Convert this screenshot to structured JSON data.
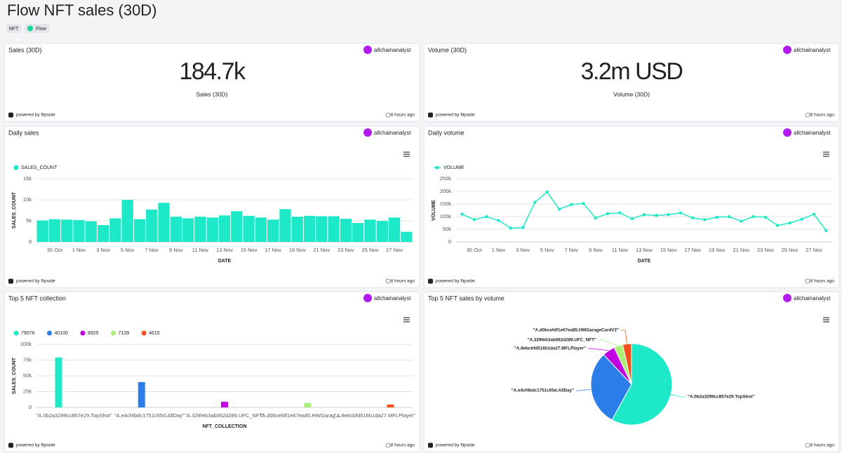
{
  "title": "Flow NFT sales (30D)",
  "tags": [
    "NFT",
    "Flow"
  ],
  "author": "allchainanalyst",
  "powered_by": "powered by flipside",
  "updated": "8 hours ago",
  "kpis": [
    {
      "title": "Sales (30D)",
      "value": "184.7k",
      "label": "Sales (30D)"
    },
    {
      "title": "Volume (30D)",
      "value": "3.2m USD",
      "label": "Volume (30D)"
    }
  ],
  "chart_data": [
    {
      "type": "bar",
      "title": "Daily sales",
      "categories": [
        null,
        "30 Oct",
        null,
        "1 Nov",
        null,
        "3 Nov",
        null,
        "5 Nov",
        null,
        "7 Nov",
        null,
        "9 Nov",
        null,
        "11 Nov",
        null,
        "13 Nov",
        null,
        "15 Nov",
        null,
        "17 Nov",
        null,
        "19 Nov",
        null,
        "21 Nov",
        null,
        "23 Nov",
        null,
        "25 Nov",
        null,
        "27 Nov",
        null
      ],
      "series": [
        {
          "name": "SALES_COUNT",
          "color": "#1de9c9",
          "values": [
            5100,
            5400,
            5300,
            5200,
            4900,
            4000,
            5600,
            10000,
            5400,
            7700,
            9300,
            6000,
            5600,
            6000,
            5800,
            6300,
            7300,
            6200,
            5800,
            5300,
            7800,
            6000,
            6200,
            6100,
            6100,
            5500,
            4500,
            5300,
            5000,
            5800,
            2400
          ]
        }
      ],
      "x_label": "DATE",
      "y_label": "SALES_COUNT",
      "ylim": [
        0,
        15000
      ],
      "yticks": [
        0,
        {
          "value": 5000,
          "label": "5k"
        },
        {
          "value": 10000,
          "label": "10k"
        },
        {
          "value": 15000,
          "label": "15k"
        }
      ],
      "grid": true
    },
    {
      "type": "line",
      "title": "Daily volume",
      "categories": [
        null,
        "30 Oct",
        null,
        "1 Nov",
        null,
        "3 Nov",
        null,
        "5 Nov",
        null,
        "7 Nov",
        null,
        "9 Nov",
        null,
        "11 Nov",
        null,
        "13 Nov",
        null,
        "15 Nov",
        null,
        "17 Nov",
        null,
        "19 Nov",
        null,
        "21 Nov",
        null,
        "23 Nov",
        null,
        "25 Nov",
        null,
        "27 Nov",
        null
      ],
      "series": [
        {
          "name": "VOLUME",
          "color": "#1de9c9",
          "values": [
            110000,
            88000,
            100000,
            85000,
            55000,
            57000,
            157000,
            198000,
            130000,
            148000,
            152000,
            95000,
            112000,
            115000,
            92000,
            108000,
            105000,
            108000,
            115000,
            95000,
            88000,
            98000,
            100000,
            82000,
            100000,
            98000,
            65000,
            75000,
            90000,
            110000,
            45000
          ]
        }
      ],
      "x_label": "DATE",
      "y_label": "VOLUME",
      "ylim": [
        0,
        250000
      ],
      "yticks": [
        0,
        {
          "value": 50000,
          "label": "50k"
        },
        {
          "value": 100000,
          "label": "100k"
        },
        {
          "value": 150000,
          "label": "150k"
        },
        {
          "value": 200000,
          "label": "200k"
        },
        {
          "value": 250000,
          "label": "250k"
        }
      ],
      "grid": true
    },
    {
      "type": "bar",
      "title": "Top 5 NFT collection",
      "categories": [
        "\"A.0b2a3299cc857e29.TopShot\"",
        "\"A.e4cf4bdc1751c65d.AllDay\"",
        "\"A.329feb3ab062d289.UFC_NFT\"",
        "\"A.d0bcefdf1e67ea85.HWGarag...",
        "\"A.8ebcbfd516b1da27.MFLPlayer\""
      ],
      "series": [
        {
          "name": "79076",
          "color": "#1de9c9",
          "values": [
            79076,
            null,
            null,
            null,
            null
          ]
        },
        {
          "name": "40100",
          "color": "#2b7de9",
          "values": [
            null,
            40100,
            null,
            null,
            null
          ]
        },
        {
          "name": "8925",
          "color": "#c000e0",
          "values": [
            null,
            null,
            8925,
            null,
            null
          ]
        },
        {
          "name": "7139",
          "color": "#a9ef7a",
          "values": [
            null,
            null,
            null,
            7139,
            null
          ]
        },
        {
          "name": "4615",
          "color": "#f4511e",
          "values": [
            null,
            null,
            null,
            null,
            4615
          ]
        }
      ],
      "x_label": "NFT_COLLECTION",
      "y_label": "SALES_COUNT",
      "ylim": [
        0,
        100000
      ],
      "yticks": [
        0,
        {
          "value": 25000,
          "label": "25k"
        },
        {
          "value": 50000,
          "label": "50k"
        },
        {
          "value": 75000,
          "label": "75k"
        },
        {
          "value": 100000,
          "label": "100k"
        }
      ],
      "grid": true
    },
    {
      "type": "pie",
      "title": "Top 5 NFT sales by volume",
      "categories": [
        "\"A.0b2a3299cc857e29.TopShot\"",
        "\"A.e4cf4bdc1751c65d.AllDay\"",
        "\"A.8ebcbfd516b1da27.MFLPlayer\"",
        "\"A.329feb3ab062d289.UFC_NFT\"",
        "\"A.d0bcefdf1e67ea85.HWGarageCardV2\""
      ],
      "values": [
        58,
        30,
        5,
        3.5,
        3.5
      ],
      "colors": [
        "#1de9c9",
        "#2b7de9",
        "#c000e0",
        "#a9ef7a",
        "#f4511e"
      ]
    }
  ]
}
